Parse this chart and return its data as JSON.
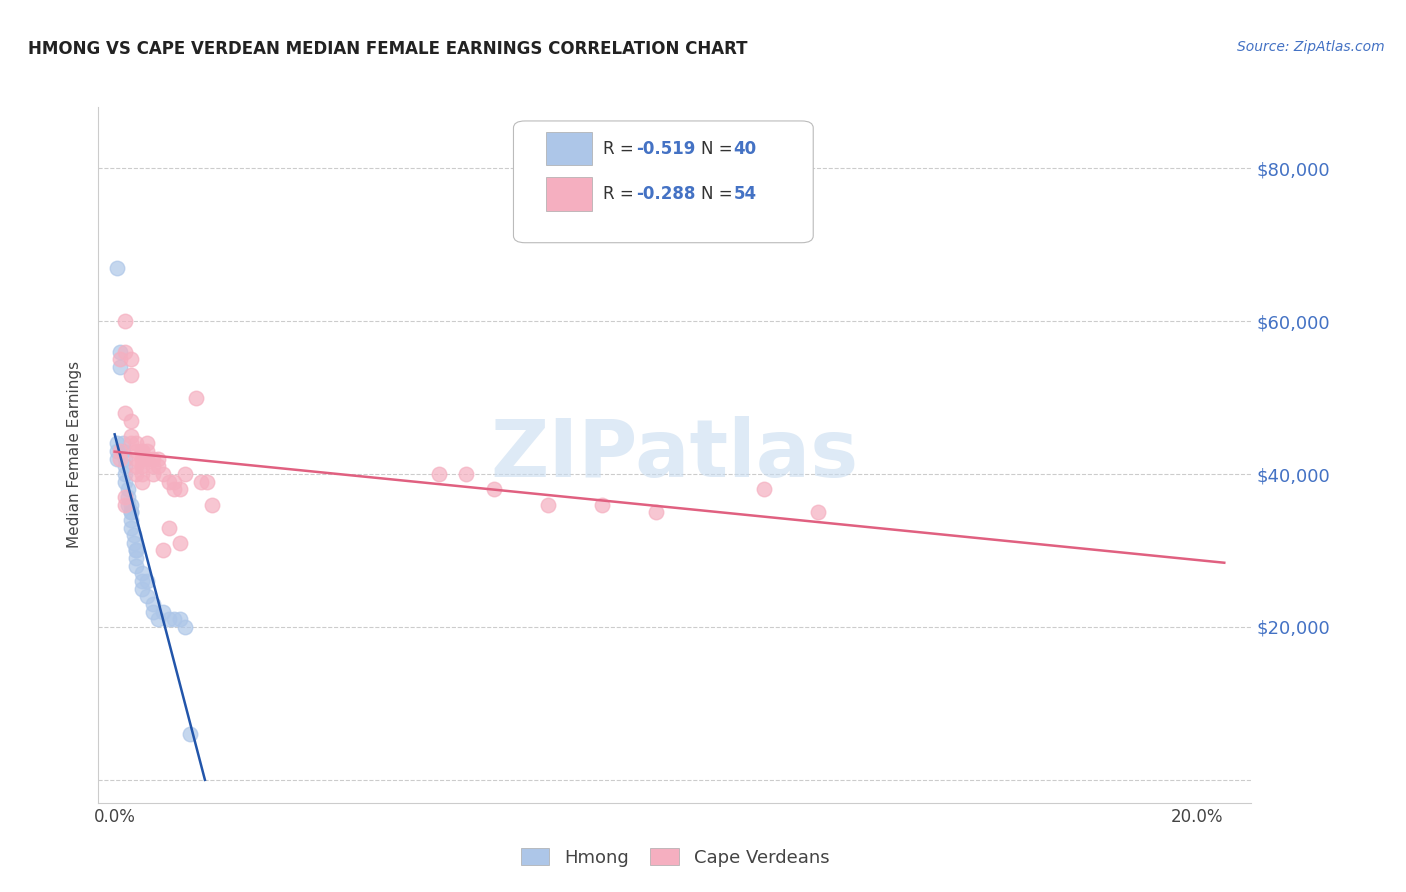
{
  "title": "HMONG VS CAPE VERDEAN MEDIAN FEMALE EARNINGS CORRELATION CHART",
  "source": "Source: ZipAtlas.com",
  "ylabel": "Median Female Earnings",
  "x_ticks": [
    0.0,
    0.05,
    0.1,
    0.15,
    0.2
  ],
  "x_tick_labels": [
    "0.0%",
    "",
    "",
    "",
    "20.0%"
  ],
  "y_ticks": [
    0,
    20000,
    40000,
    60000,
    80000
  ],
  "y_tick_labels_right": [
    "",
    "$20,000",
    "$40,000",
    "$60,000",
    "$80,000"
  ],
  "xlim": [
    -0.003,
    0.21
  ],
  "ylim": [
    -3000,
    88000
  ],
  "legend_r1": "-0.519",
  "legend_n1": "40",
  "legend_r2": "-0.288",
  "legend_n2": "54",
  "hmong_color": "#adc6e8",
  "cape_color": "#f5afc0",
  "hmong_edge_color": "#adc6e8",
  "cape_edge_color": "#f5afc0",
  "hmong_line_color": "#2255aa",
  "cape_line_color": "#e06080",
  "background_color": "#ffffff",
  "watermark": "ZIPatlas",
  "watermark_color": "#c8dcf0",
  "grid_color": "#cccccc",
  "right_axis_color": "#4472C4",
  "title_color": "#222222",
  "source_color": "#4472C4",
  "hmong_x": [
    0.0005,
    0.001,
    0.001,
    0.0015,
    0.0015,
    0.002,
    0.002,
    0.002,
    0.002,
    0.0025,
    0.0025,
    0.0025,
    0.003,
    0.003,
    0.003,
    0.003,
    0.003,
    0.0035,
    0.0035,
    0.004,
    0.004,
    0.004,
    0.004,
    0.005,
    0.005,
    0.005,
    0.006,
    0.006,
    0.007,
    0.007,
    0.008,
    0.009,
    0.01,
    0.011,
    0.012,
    0.013,
    0.014,
    0.0005,
    0.0005,
    0.0005
  ],
  "hmong_y": [
    67000,
    56000,
    54000,
    44000,
    43000,
    42000,
    41000,
    40000,
    39000,
    38000,
    37000,
    36000,
    36000,
    35000,
    35000,
    34000,
    33000,
    32000,
    31000,
    30000,
    30000,
    29000,
    28000,
    27000,
    26000,
    25000,
    26000,
    24000,
    23000,
    22000,
    21000,
    22000,
    21000,
    21000,
    21000,
    20000,
    6000,
    44000,
    43000,
    42000
  ],
  "cape_x": [
    0.001,
    0.002,
    0.002,
    0.002,
    0.003,
    0.003,
    0.003,
    0.003,
    0.003,
    0.004,
    0.004,
    0.004,
    0.004,
    0.004,
    0.005,
    0.005,
    0.005,
    0.005,
    0.005,
    0.005,
    0.006,
    0.006,
    0.006,
    0.006,
    0.007,
    0.007,
    0.007,
    0.008,
    0.008,
    0.009,
    0.009,
    0.01,
    0.01,
    0.011,
    0.011,
    0.012,
    0.012,
    0.013,
    0.015,
    0.016,
    0.017,
    0.018,
    0.06,
    0.065,
    0.07,
    0.08,
    0.09,
    0.1,
    0.12,
    0.13,
    0.001,
    0.001,
    0.002,
    0.002
  ],
  "cape_y": [
    55000,
    60000,
    56000,
    48000,
    55000,
    53000,
    47000,
    45000,
    44000,
    44000,
    43000,
    42000,
    41000,
    40000,
    43000,
    43000,
    42000,
    41000,
    40000,
    39000,
    44000,
    43000,
    42000,
    42000,
    42000,
    41000,
    40000,
    42000,
    41000,
    40000,
    30000,
    39000,
    33000,
    39000,
    38000,
    38000,
    31000,
    40000,
    50000,
    39000,
    39000,
    36000,
    40000,
    40000,
    38000,
    36000,
    36000,
    35000,
    38000,
    35000,
    43000,
    42000,
    37000,
    36000
  ]
}
